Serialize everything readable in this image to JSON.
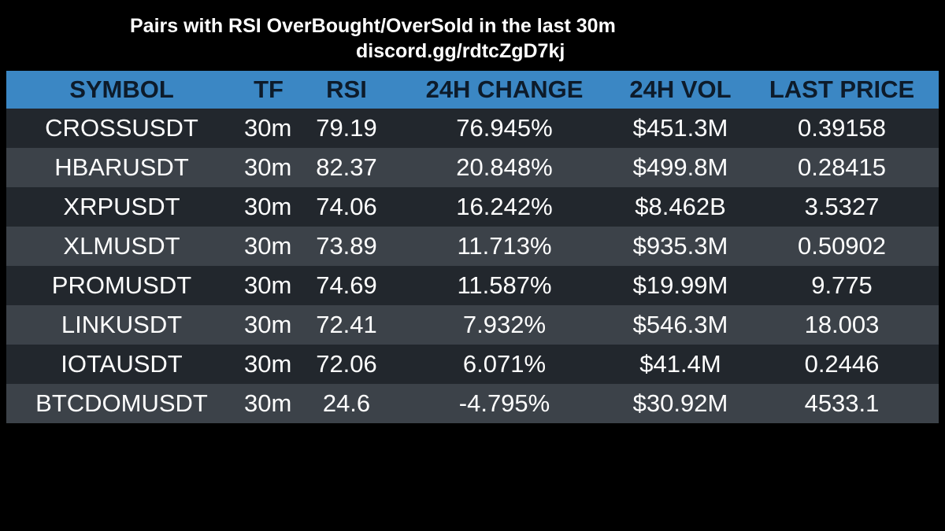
{
  "header": {
    "title": "Pairs with RSI OverBought/OverSold in the last 30m",
    "subtitle": "discord.gg/rdtcZgD7kj"
  },
  "table": {
    "columns": [
      "SYMBOL",
      "TF",
      "RSI",
      "24H CHANGE",
      "24H VOL",
      "LAST PRICE"
    ],
    "rows": [
      [
        "CROSSUSDT",
        "30m",
        "79.19",
        "76.945%",
        "$451.3M",
        "0.39158"
      ],
      [
        "HBARUSDT",
        "30m",
        "82.37",
        "20.848%",
        "$499.8M",
        "0.28415"
      ],
      [
        "XRPUSDT",
        "30m",
        "74.06",
        "16.242%",
        "$8.462B",
        "3.5327"
      ],
      [
        "XLMUSDT",
        "30m",
        "73.89",
        "11.713%",
        "$935.3M",
        "0.50902"
      ],
      [
        "PROMUSDT",
        "30m",
        "74.69",
        "11.587%",
        "$19.99M",
        "9.775"
      ],
      [
        "LINKUSDT",
        "30m",
        "72.41",
        "7.932%",
        "$546.3M",
        "18.003"
      ],
      [
        "IOTAUSDT",
        "30m",
        "72.06",
        "6.071%",
        "$41.4M",
        "0.2446"
      ],
      [
        "BTCDOMUSDT",
        "30m",
        "24.6",
        "-4.795%",
        "$30.92M",
        "4533.1"
      ]
    ]
  },
  "colors": {
    "background": "#000000",
    "header_row": "#3b87c4",
    "row_dark": "#22272d",
    "row_light": "#3c4249",
    "text": "#ffffff",
    "header_text": "#0d1b2a"
  }
}
